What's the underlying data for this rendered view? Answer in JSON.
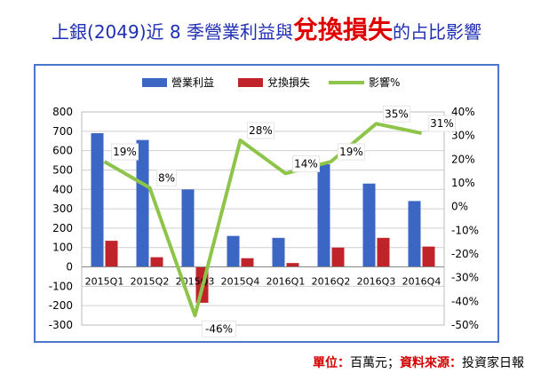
{
  "title": {
    "prefix": "上銀(2049)近 8 季營業利益與",
    "highlight": "兌換損失",
    "suffix": "的占比影響"
  },
  "source": {
    "unit_label": "單位：",
    "unit_value": "百萬元；",
    "source_label": "資料來源：",
    "source_value": "投資家日報"
  },
  "colors": {
    "operating": "#3b66c4",
    "fx": "#c0242a",
    "ratio": "#8ec44a"
  },
  "chart_data": {
    "type": "bar",
    "categories": [
      "2015Q1",
      "2015Q2",
      "2015Q3",
      "2015Q4",
      "2016Q1",
      "2016Q2",
      "2016Q3",
      "2016Q4"
    ],
    "series": [
      {
        "name": "營業利益",
        "type": "bar",
        "values": [
          690,
          655,
          400,
          160,
          150,
          530,
          430,
          340
        ]
      },
      {
        "name": "兌換損失",
        "type": "bar",
        "values": [
          135,
          50,
          -185,
          45,
          20,
          100,
          150,
          105
        ]
      },
      {
        "name": "影響%",
        "type": "line",
        "axis": "right",
        "values": [
          19,
          8,
          -46,
          28,
          14,
          19,
          35,
          31
        ],
        "labels": [
          "19%",
          "8%",
          "-46%",
          "28%",
          "14%",
          "19%",
          "35%",
          "31%"
        ]
      }
    ],
    "y_left": {
      "min": -300,
      "max": 800,
      "step": 100,
      "ticks": [
        "800",
        "700",
        "600",
        "500",
        "400",
        "300",
        "200",
        "100",
        "0",
        "-100",
        "-200",
        "-300"
      ]
    },
    "y_right": {
      "min": -50,
      "max": 40,
      "step": 10,
      "ticks": [
        "40%",
        "30%",
        "20%",
        "10%",
        "0%",
        "-10%",
        "-20%",
        "-30%",
        "-40%",
        "-50%"
      ]
    },
    "legend_position": "top",
    "grid": true
  }
}
